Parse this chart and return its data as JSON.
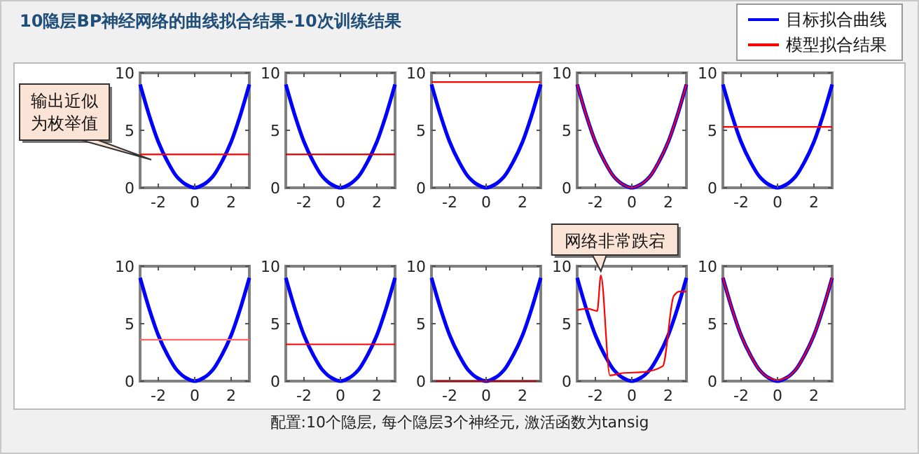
{
  "chart_data": [
    {
      "type": "line",
      "title": "10隐层BP神经网络的曲线拟合结果-10次训练结果",
      "annotations": [
        "配置:10个隐层, 每个隐层3个神经元, 激活函数为tansig",
        "输出近似为枚举值"
      ],
      "x": [
        -3,
        -2.5,
        -2,
        -1.5,
        -1,
        -0.5,
        0,
        0.5,
        1,
        1.5,
        2,
        2.5,
        3
      ],
      "xlim": [
        -3,
        3
      ],
      "xticks": [
        -2,
        0,
        2
      ],
      "ylim": [
        0,
        10
      ],
      "yticks": [
        0,
        5,
        10
      ],
      "series": [
        {
          "color": "#0000ff",
          "values": [
            9,
            6.3,
            4,
            2.3,
            1,
            0.3,
            0,
            0.3,
            1,
            2.3,
            4,
            6.3,
            9
          ]
        },
        {
          "color": "#ff0000",
          "x": [
            -3,
            3
          ],
          "values": [
            2.9,
            2.9
          ]
        }
      ]
    },
    {
      "type": "line",
      "x": [
        -3,
        -2.5,
        -2,
        -1.5,
        -1,
        -0.5,
        0,
        0.5,
        1,
        1.5,
        2,
        2.5,
        3
      ],
      "xlim": [
        -3,
        3
      ],
      "xticks": [
        -2,
        0,
        2
      ],
      "ylim": [
        0,
        10
      ],
      "yticks": [
        0,
        5,
        10
      ],
      "series": [
        {
          "color": "#0000ff",
          "values": [
            9,
            6.3,
            4,
            2.3,
            1,
            0.3,
            0,
            0.3,
            1,
            2.3,
            4,
            6.3,
            9
          ]
        },
        {
          "color": "#cc0000",
          "x": [
            -3,
            3
          ],
          "values": [
            2.9,
            2.9
          ]
        }
      ]
    },
    {
      "type": "line",
      "x": [
        -3,
        -2.5,
        -2,
        -1.5,
        -1,
        -0.5,
        0,
        0.5,
        1,
        1.5,
        2,
        2.5,
        3
      ],
      "xlim": [
        -3,
        3
      ],
      "xticks": [
        -2,
        0,
        2
      ],
      "ylim": [
        0,
        10
      ],
      "yticks": [
        0,
        5,
        10
      ],
      "series": [
        {
          "color": "#0000ff",
          "values": [
            9,
            6.3,
            4,
            2.3,
            1,
            0.3,
            0,
            0.3,
            1,
            2.3,
            4,
            6.3,
            9
          ]
        },
        {
          "color": "#ff0000",
          "x": [
            -3,
            3
          ],
          "values": [
            9.2,
            9.2
          ]
        }
      ]
    },
    {
      "type": "line",
      "x": [
        -3,
        -2.5,
        -2,
        -1.5,
        -1,
        -0.5,
        0,
        0.5,
        1,
        1.5,
        2,
        2.5,
        3
      ],
      "xlim": [
        -3,
        3
      ],
      "xticks": [
        -2,
        0,
        2
      ],
      "ylim": [
        0,
        10
      ],
      "yticks": [
        0,
        5,
        10
      ],
      "series": [
        {
          "color": "#0000ff",
          "values": [
            9,
            6.3,
            4,
            2.3,
            1,
            0.3,
            0,
            0.3,
            1,
            2.3,
            4,
            6.3,
            9
          ]
        },
        {
          "color": "#ff0000",
          "values": [
            9,
            6.3,
            4,
            2.3,
            1,
            0.3,
            0,
            0.3,
            1,
            2.3,
            4,
            6.3,
            9
          ]
        }
      ]
    },
    {
      "type": "line",
      "legend": "top right",
      "x": [
        -3,
        -2.5,
        -2,
        -1.5,
        -1,
        -0.5,
        0,
        0.5,
        1,
        1.5,
        2,
        2.5,
        3
      ],
      "xlim": [
        -3,
        3
      ],
      "xticks": [
        -2,
        0,
        2
      ],
      "ylim": [
        0,
        10
      ],
      "yticks": [
        0,
        5,
        10
      ],
      "series": [
        {
          "name": "目标拟合曲线",
          "color": "#0000ff",
          "values": [
            9,
            6.3,
            4,
            2.3,
            1,
            0.3,
            0,
            0.3,
            1,
            2.3,
            4,
            6.3,
            9
          ]
        },
        {
          "name": "模型拟合结果",
          "color": "#ff0000",
          "x": [
            -3,
            3
          ],
          "values": [
            5.3,
            5.3
          ]
        }
      ]
    },
    {
      "type": "line",
      "x": [
        -3,
        -2.5,
        -2,
        -1.5,
        -1,
        -0.5,
        0,
        0.5,
        1,
        1.5,
        2,
        2.5,
        3
      ],
      "xlim": [
        -3,
        3
      ],
      "xticks": [
        -2,
        0,
        2
      ],
      "ylim": [
        0,
        10
      ],
      "yticks": [
        0,
        5,
        10
      ],
      "series": [
        {
          "color": "#0000ff",
          "values": [
            9,
            6.3,
            4,
            2.3,
            1,
            0.3,
            0,
            0.3,
            1,
            2.3,
            4,
            6.3,
            9
          ]
        },
        {
          "color": "#ff6666",
          "x": [
            -3,
            3
          ],
          "values": [
            3.6,
            3.6
          ]
        }
      ]
    },
    {
      "type": "line",
      "x": [
        -3,
        -2.5,
        -2,
        -1.5,
        -1,
        -0.5,
        0,
        0.5,
        1,
        1.5,
        2,
        2.5,
        3
      ],
      "xlim": [
        -3,
        3
      ],
      "xticks": [
        -2,
        0,
        2
      ],
      "ylim": [
        0,
        10
      ],
      "yticks": [
        0,
        5,
        10
      ],
      "series": [
        {
          "color": "#0000ff",
          "values": [
            9,
            6.3,
            4,
            2.3,
            1,
            0.3,
            0,
            0.3,
            1,
            2.3,
            4,
            6.3,
            9
          ]
        },
        {
          "color": "#ff0000",
          "x": [
            -3,
            3
          ],
          "values": [
            3.2,
            3.2
          ]
        }
      ]
    },
    {
      "type": "line",
      "x": [
        -3,
        -2.5,
        -2,
        -1.5,
        -1,
        -0.5,
        0,
        0.5,
        1,
        1.5,
        2,
        2.5,
        3
      ],
      "xlim": [
        -3,
        3
      ],
      "xticks": [
        -2,
        0,
        2
      ],
      "ylim": [
        0,
        10
      ],
      "yticks": [
        0,
        5,
        10
      ],
      "series": [
        {
          "color": "#0000ff",
          "values": [
            9,
            6.3,
            4,
            2.3,
            1,
            0.3,
            0,
            0.3,
            1,
            2.3,
            4,
            6.3,
            9
          ]
        },
        {
          "color": "#c00000",
          "x": [
            -3,
            3
          ],
          "values": [
            0,
            0
          ]
        }
      ]
    },
    {
      "type": "line",
      "annotations": [
        {
          "text": "网络非常跌宕",
          "x": -1.7,
          "y": 9.2
        }
      ],
      "x": [
        -3,
        -2.5,
        -2,
        -1.5,
        -1,
        -0.5,
        0,
        0.5,
        1,
        1.5,
        2,
        2.5,
        3
      ],
      "xlim": [
        -3,
        3
      ],
      "xticks": [
        -2,
        0,
        2
      ],
      "ylim": [
        0,
        10
      ],
      "yticks": [
        0,
        5,
        10
      ],
      "series": [
        {
          "color": "#0000ff",
          "values": [
            9,
            6.3,
            4,
            2.3,
            1,
            0.3,
            0,
            0.3,
            1,
            2.3,
            4,
            6.3,
            9
          ]
        },
        {
          "color": "#ff0000",
          "x": [
            -3,
            -2.4,
            -1.9,
            -1.7,
            -1.2,
            -0.5,
            0.7,
            1.7,
            2.3,
            2.6,
            3
          ],
          "values": [
            6.2,
            6.3,
            6.1,
            9.2,
            0.5,
            0.7,
            0.8,
            1.3,
            7.4,
            7.8,
            7.8
          ]
        }
      ]
    },
    {
      "type": "line",
      "x": [
        -3,
        -2.5,
        -2,
        -1.5,
        -1,
        -0.5,
        0,
        0.5,
        1,
        1.5,
        2,
        2.5,
        3
      ],
      "xlim": [
        -3,
        3
      ],
      "xticks": [
        -2,
        0,
        2
      ],
      "ylim": [
        0,
        10
      ],
      "yticks": [
        0,
        5,
        10
      ],
      "series": [
        {
          "color": "#0000ff",
          "values": [
            9,
            6.3,
            4,
            2.3,
            1,
            0.3,
            0,
            0.3,
            1,
            2.3,
            4,
            6.3,
            9
          ]
        },
        {
          "color": "#ff0000",
          "values": [
            9,
            6.3,
            4,
            2.3,
            1,
            0.3,
            0.1,
            0.3,
            1,
            2.3,
            4,
            6.3,
            9
          ]
        }
      ]
    }
  ]
}
